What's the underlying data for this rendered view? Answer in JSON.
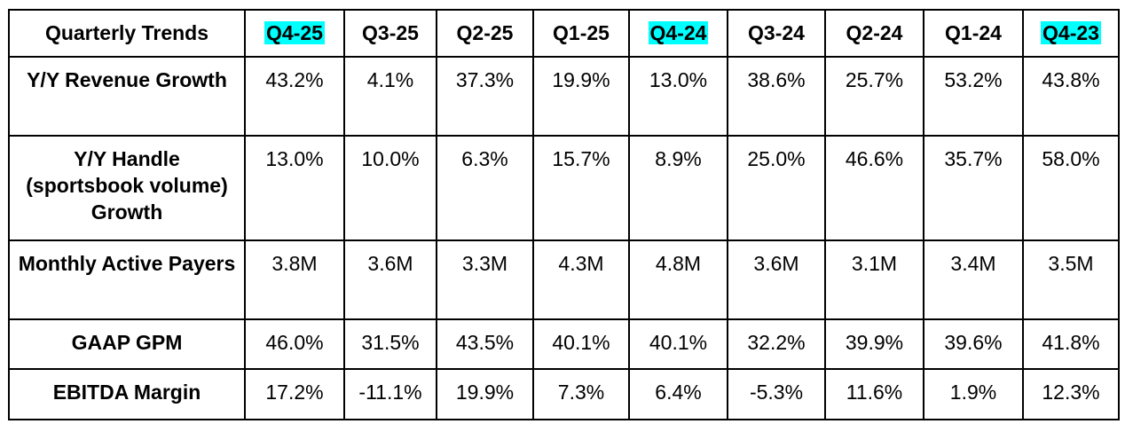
{
  "table": {
    "corner_label": "Quarterly Trends",
    "columns": [
      {
        "label": "Q4-25",
        "highlighted": true
      },
      {
        "label": "Q3-25",
        "highlighted": false
      },
      {
        "label": "Q2-25",
        "highlighted": false
      },
      {
        "label": "Q1-25",
        "highlighted": false
      },
      {
        "label": "Q4-24",
        "highlighted": true
      },
      {
        "label": "Q3-24",
        "highlighted": false
      },
      {
        "label": "Q2-24",
        "highlighted": false
      },
      {
        "label": "Q1-24",
        "highlighted": false
      },
      {
        "label": "Q4-23",
        "highlighted": true
      }
    ],
    "highlight_color": "#00ffff",
    "rows": [
      {
        "label": "Y/Y Revenue Growth",
        "values": [
          "43.2%",
          "4.1%",
          "37.3%",
          "19.9%",
          "13.0%",
          "38.6%",
          "25.7%",
          "53.2%",
          "43.8%"
        ]
      },
      {
        "label": "Y/Y Handle (sportsbook volume) Growth",
        "values": [
          "13.0%",
          "10.0%",
          "6.3%",
          "15.7%",
          "8.9%",
          "25.0%",
          "46.6%",
          "35.7%",
          "58.0%"
        ]
      },
      {
        "label": "Monthly Active Payers",
        "values": [
          "3.8M",
          "3.6M",
          "3.3M",
          "4.3M",
          "4.8M",
          "3.6M",
          "3.1M",
          "3.4M",
          "3.5M"
        ]
      },
      {
        "label": "GAAP GPM",
        "values": [
          "46.0%",
          "31.5%",
          "43.5%",
          "40.1%",
          "40.1%",
          "32.2%",
          "39.9%",
          "39.6%",
          "41.8%"
        ]
      },
      {
        "label": "EBITDA Margin",
        "values": [
          "17.2%",
          "-11.1%",
          "19.9%",
          "7.3%",
          "6.4%",
          "-5.3%",
          "11.6%",
          "1.9%",
          "12.3%"
        ]
      }
    ]
  }
}
